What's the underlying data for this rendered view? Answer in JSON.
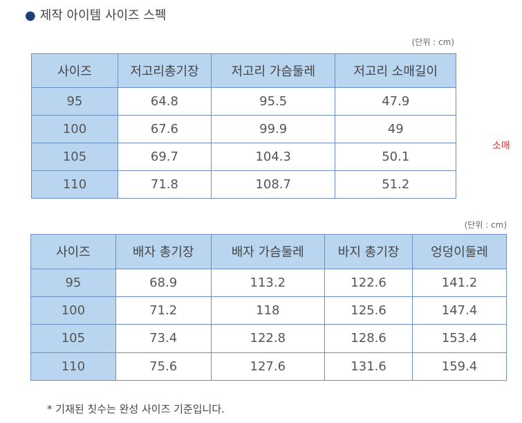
{
  "title": "제작 아이템 사이즈 스펙",
  "tables": [
    {
      "unit": "(단위 : cm)",
      "header": [
        "사이즈",
        "저고리총기장",
        "저고리 가슴둘레",
        "저고리 소매길이"
      ],
      "rows": [
        [
          "95",
          "64.8",
          "95.5",
          "47.9"
        ],
        [
          "100",
          "67.6",
          "99.9",
          "49"
        ],
        [
          "105",
          "69.7",
          "104.3",
          "50.1"
        ],
        [
          "110",
          "71.8",
          "108.7",
          "51.2"
        ]
      ]
    },
    {
      "unit": "(단위 : cm)",
      "header": [
        "사이즈",
        "배자 총기장",
        "배자 가슴둘레",
        "바지 총기장",
        "엉덩이둘레"
      ],
      "rows": [
        [
          "95",
          "68.9",
          "113.2",
          "122.6",
          "141.2"
        ],
        [
          "100",
          "71.2",
          "118",
          "125.6",
          "147.4"
        ],
        [
          "105",
          "73.4",
          "122.8",
          "128.6",
          "153.4"
        ],
        [
          "110",
          "75.6",
          "127.6",
          "131.6",
          "159.4"
        ]
      ]
    }
  ],
  "side_note": "소매",
  "footnote": "* 기재된 칫수는 완성 사이즈 기준입니다."
}
